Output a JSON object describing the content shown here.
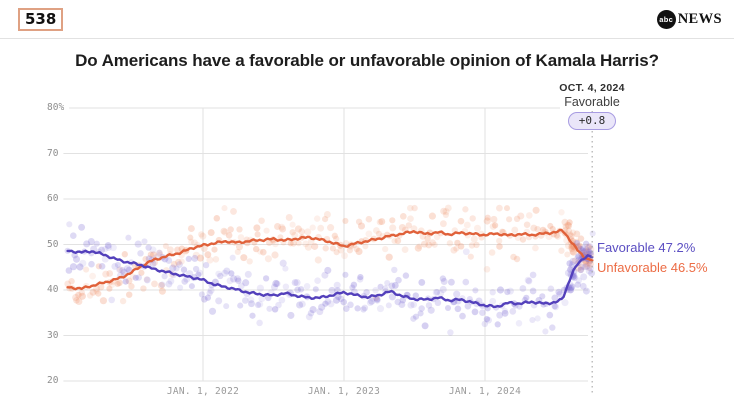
{
  "header": {
    "brand": "538",
    "network": {
      "circle_text": "abc",
      "name": "NEWS"
    }
  },
  "title": "Do Americans have a favorable or unfavorable opinion of Kamala Harris?",
  "annotation": {
    "date": "OCT. 4, 2024",
    "series": "Favorable",
    "net_value": "+0.8"
  },
  "end_labels": {
    "favorable": "Favorable 47.2%",
    "unfavorable": "Unfavorable 46.5%"
  },
  "colors": {
    "grid": "#e2e2e2",
    "tick_text": "#8d8d8d",
    "xtick_text": "#9a9a9a",
    "dotted_line": "#9e9e9e",
    "favorable_line": "#5340bb",
    "favorable_dots": "#7c6bd4",
    "favorable_label": "#5b4ec2",
    "unfavorable_line": "#e0613a",
    "unfavorable_dots": "#ef8e66",
    "unfavorable_label": "#ec6c45",
    "pill_bg": "#eae6f9",
    "pill_border": "#a89ce2",
    "pill_text": "#2b2b2b"
  },
  "chart_data": {
    "type": "line",
    "title": "Do Americans have a favorable or unfavorable opinion of Kamala Harris?",
    "as_of_date": "OCT. 4, 2024",
    "grid": true,
    "legend_position": "end-of-line labels, right side",
    "ylim": [
      20,
      80
    ],
    "y_ticks": [
      {
        "label": "80%",
        "value": 80
      },
      {
        "label": "70",
        "value": 70
      },
      {
        "label": "60",
        "value": 60
      },
      {
        "label": "50",
        "value": 50
      },
      {
        "label": "40",
        "value": 40
      },
      {
        "label": "30",
        "value": 30
      },
      {
        "label": "20",
        "value": 20
      }
    ],
    "x_ticks": [
      {
        "label": "JAN. 1, 2022",
        "year": 2022
      },
      {
        "label": "JAN. 1, 2023",
        "year": 2023
      },
      {
        "label": "JAN. 1, 2024",
        "year": 2024
      }
    ],
    "x_domain_years": [
      2021.04,
      2024.76
    ],
    "annotation_year": 2024.76,
    "net_favorability": 0.8,
    "series": [
      {
        "name": "Favorable",
        "end_value": 47.2,
        "points": [
          [
            2021.04,
            48.6
          ],
          [
            2021.14,
            48.3
          ],
          [
            2021.22,
            48.5
          ],
          [
            2021.32,
            47.5
          ],
          [
            2021.42,
            46.4
          ],
          [
            2021.5,
            45.9
          ],
          [
            2021.57,
            45.4
          ],
          [
            2021.65,
            44.6
          ],
          [
            2021.75,
            43.9
          ],
          [
            2021.85,
            43.2
          ],
          [
            2021.92,
            42.8
          ],
          [
            2022.0,
            42.2
          ],
          [
            2022.08,
            41.2
          ],
          [
            2022.17,
            40.6
          ],
          [
            2022.25,
            40.0
          ],
          [
            2022.33,
            39.4
          ],
          [
            2022.42,
            39.0
          ],
          [
            2022.5,
            38.8
          ],
          [
            2022.58,
            39.3
          ],
          [
            2022.67,
            38.7
          ],
          [
            2022.75,
            38.3
          ],
          [
            2022.83,
            38.3
          ],
          [
            2022.92,
            38.9
          ],
          [
            2023.0,
            39.5
          ],
          [
            2023.08,
            38.9
          ],
          [
            2023.17,
            38.4
          ],
          [
            2023.25,
            38.9
          ],
          [
            2023.33,
            39.7
          ],
          [
            2023.42,
            38.6
          ],
          [
            2023.5,
            38.0
          ],
          [
            2023.58,
            37.9
          ],
          [
            2023.67,
            38.3
          ],
          [
            2023.75,
            37.7
          ],
          [
            2023.83,
            37.9
          ],
          [
            2023.92,
            37.2
          ],
          [
            2024.0,
            36.6
          ],
          [
            2024.08,
            36.3
          ],
          [
            2024.17,
            37.2
          ],
          [
            2024.25,
            37.0
          ],
          [
            2024.33,
            37.4
          ],
          [
            2024.42,
            37.0
          ],
          [
            2024.5,
            37.3
          ],
          [
            2024.55,
            38.0
          ],
          [
            2024.58,
            40.5
          ],
          [
            2024.62,
            43.8
          ],
          [
            2024.66,
            45.8
          ],
          [
            2024.7,
            47.0
          ],
          [
            2024.73,
            47.6
          ],
          [
            2024.76,
            47.2
          ]
        ]
      },
      {
        "name": "Unfavorable",
        "end_value": 46.5,
        "points": [
          [
            2021.04,
            40.6
          ],
          [
            2021.14,
            40.3
          ],
          [
            2021.22,
            41.0
          ],
          [
            2021.32,
            41.8
          ],
          [
            2021.42,
            42.7
          ],
          [
            2021.5,
            44.0
          ],
          [
            2021.57,
            45.4
          ],
          [
            2021.65,
            46.6
          ],
          [
            2021.75,
            47.5
          ],
          [
            2021.85,
            48.3
          ],
          [
            2021.92,
            49.2
          ],
          [
            2022.0,
            49.8
          ],
          [
            2022.08,
            50.3
          ],
          [
            2022.17,
            50.7
          ],
          [
            2022.25,
            50.4
          ],
          [
            2022.33,
            50.8
          ],
          [
            2022.42,
            51.0
          ],
          [
            2022.5,
            51.2
          ],
          [
            2022.58,
            50.9
          ],
          [
            2022.67,
            51.3
          ],
          [
            2022.75,
            51.6
          ],
          [
            2022.83,
            51.1
          ],
          [
            2022.92,
            50.4
          ],
          [
            2023.0,
            49.6
          ],
          [
            2023.08,
            50.2
          ],
          [
            2023.17,
            50.8
          ],
          [
            2023.25,
            51.3
          ],
          [
            2023.33,
            51.9
          ],
          [
            2023.42,
            52.4
          ],
          [
            2023.5,
            52.9
          ],
          [
            2023.58,
            52.3
          ],
          [
            2023.67,
            52.7
          ],
          [
            2023.75,
            52.2
          ],
          [
            2023.83,
            52.6
          ],
          [
            2023.92,
            52.3
          ],
          [
            2024.0,
            52.1
          ],
          [
            2024.08,
            52.4
          ],
          [
            2024.17,
            52.0
          ],
          [
            2024.25,
            52.3
          ],
          [
            2024.33,
            52.1
          ],
          [
            2024.42,
            52.4
          ],
          [
            2024.5,
            52.7
          ],
          [
            2024.55,
            53.1
          ],
          [
            2024.58,
            52.0
          ],
          [
            2024.62,
            50.2
          ],
          [
            2024.66,
            48.6
          ],
          [
            2024.7,
            47.4
          ],
          [
            2024.73,
            46.8
          ],
          [
            2024.76,
            46.5
          ]
        ]
      }
    ],
    "scatter_style": {
      "seed": 11,
      "per_series": 290,
      "end_cluster": 46,
      "sigma": 2.7,
      "end_sigma": 2.0
    }
  }
}
